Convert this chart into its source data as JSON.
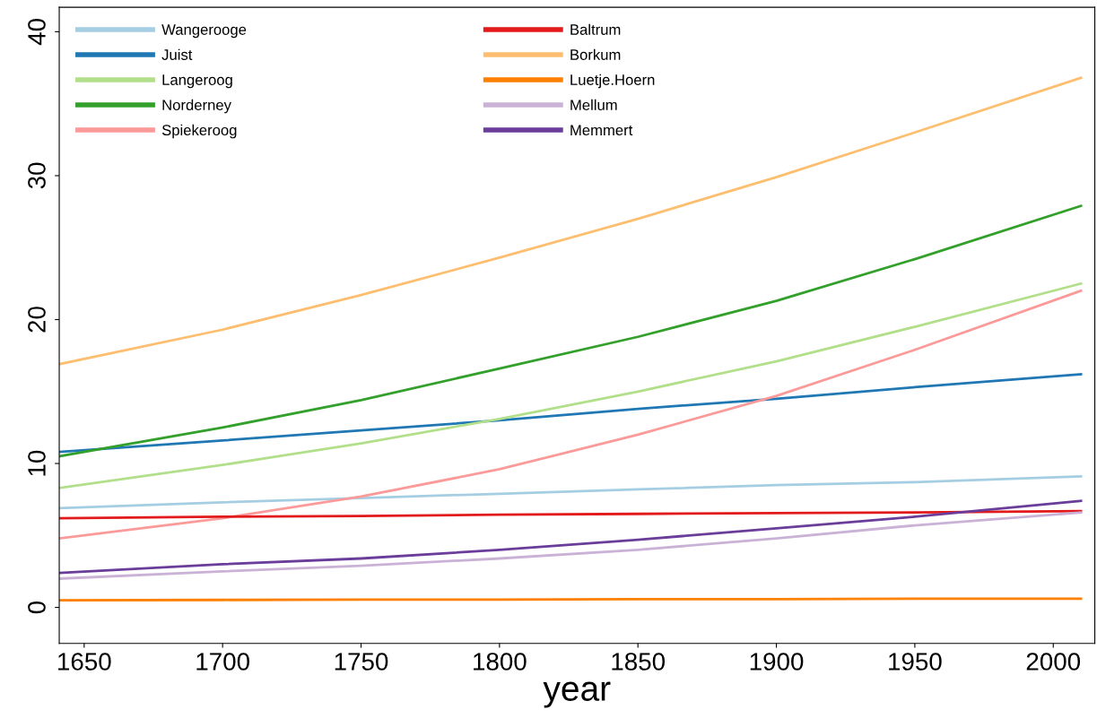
{
  "chart_data": {
    "type": "line",
    "xlabel": "year",
    "x": [
      1641,
      1700,
      1750,
      1800,
      1850,
      1900,
      1950,
      2010
    ],
    "xlim": [
      1641,
      2015
    ],
    "xticks": [
      1650,
      1700,
      1750,
      1800,
      1850,
      1900,
      1950,
      2000
    ],
    "ylim": [
      -2.5,
      41.7
    ],
    "yticks": [
      0,
      10,
      20,
      30,
      40
    ],
    "grid": false,
    "legend": "top left",
    "line_style": "solid",
    "series": [
      {
        "name": "Wangerooge",
        "color": "#a6cee3",
        "values": [
          6.9,
          7.3,
          7.6,
          7.9,
          8.2,
          8.5,
          8.7,
          9.1
        ]
      },
      {
        "name": "Juist",
        "color": "#1f78b4",
        "values": [
          10.8,
          11.6,
          12.3,
          13.0,
          13.8,
          14.5,
          15.3,
          16.2
        ]
      },
      {
        "name": "Langeroog",
        "color": "#b2df8a",
        "values": [
          8.3,
          9.9,
          11.4,
          13.1,
          15.0,
          17.1,
          19.5,
          22.5
        ]
      },
      {
        "name": "Norderney",
        "color": "#33a02c",
        "values": [
          10.5,
          12.5,
          14.4,
          16.6,
          18.8,
          21.3,
          24.2,
          27.9
        ]
      },
      {
        "name": "Spiekeroog",
        "color": "#fb9a99",
        "values": [
          4.8,
          6.2,
          7.7,
          9.6,
          12.0,
          14.7,
          17.9,
          22.0
        ]
      },
      {
        "name": "Baltrum",
        "color": "#e31a1c",
        "values": [
          6.2,
          6.3,
          6.35,
          6.45,
          6.5,
          6.55,
          6.6,
          6.7
        ]
      },
      {
        "name": "Borkum",
        "color": "#fdbf6f",
        "values": [
          16.9,
          19.3,
          21.7,
          24.3,
          27.0,
          29.9,
          33.0,
          36.8
        ]
      },
      {
        "name": "Luetje.Hoern",
        "color": "#ff7f00",
        "values": [
          0.5,
          0.52,
          0.54,
          0.55,
          0.57,
          0.58,
          0.6,
          0.6
        ]
      },
      {
        "name": "Mellum",
        "color": "#cab2d6",
        "values": [
          2.0,
          2.5,
          2.9,
          3.4,
          4.0,
          4.8,
          5.7,
          6.6
        ]
      },
      {
        "name": "Memmert",
        "color": "#6a3d9a",
        "values": [
          2.4,
          3.0,
          3.4,
          4.0,
          4.7,
          5.5,
          6.3,
          7.4
        ]
      }
    ]
  }
}
